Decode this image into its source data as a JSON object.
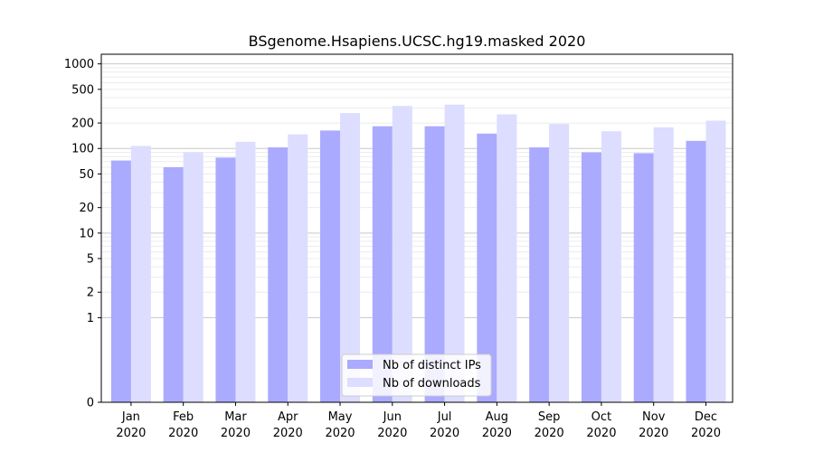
{
  "chart_data": {
    "type": "bar",
    "title": "BSgenome.Hsapiens.UCSC.hg19.masked 2020",
    "xlabel": "",
    "ylabel": "",
    "y_scale": "symlog",
    "ylim": [
      0,
      1300
    ],
    "y_ticks": [
      0,
      1,
      2,
      5,
      10,
      20,
      50,
      100,
      200,
      500,
      1000
    ],
    "y_tick_labels": [
      "0",
      "1",
      "2",
      "5",
      "10",
      "20",
      "50",
      "100",
      "200",
      "500",
      "1000"
    ],
    "grid": true,
    "legend_position": "bottom-center",
    "categories": [
      [
        "Jan",
        "2020"
      ],
      [
        "Feb",
        "2020"
      ],
      [
        "Mar",
        "2020"
      ],
      [
        "Apr",
        "2020"
      ],
      [
        "May",
        "2020"
      ],
      [
        "Jun",
        "2020"
      ],
      [
        "Jul",
        "2020"
      ],
      [
        "Aug",
        "2020"
      ],
      [
        "Sep",
        "2020"
      ],
      [
        "Oct",
        "2020"
      ],
      [
        "Nov",
        "2020"
      ],
      [
        "Dec",
        "2020"
      ]
    ],
    "series": [
      {
        "name": "Nb of distinct IPs",
        "color": "#aaaaff",
        "values": [
          72,
          60,
          78,
          103,
          163,
          183,
          183,
          150,
          103,
          90,
          88,
          123
        ]
      },
      {
        "name": "Nb of downloads",
        "color": "#ddddff",
        "values": [
          107,
          90,
          120,
          147,
          262,
          318,
          330,
          253,
          195,
          160,
          178,
          213
        ]
      }
    ]
  }
}
